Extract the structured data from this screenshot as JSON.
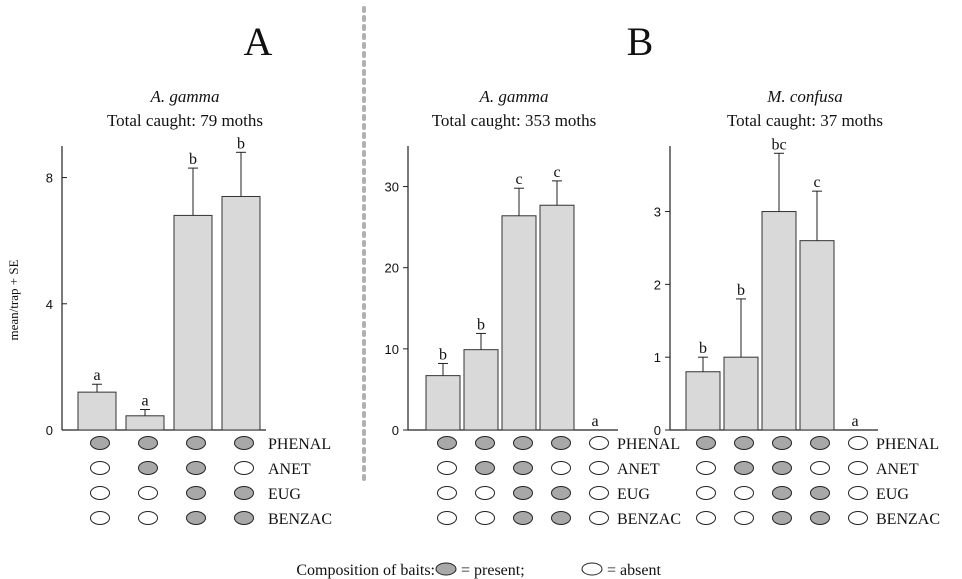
{
  "colors": {
    "bar_fill": "#d9d9d9",
    "bar_stroke": "#333333",
    "axis": "#222222",
    "divider": "#b0b0b0",
    "bait_present": "#a8a8a8",
    "bait_absent": "#ffffff"
  },
  "y_axis_label": "mean/trap + SE",
  "legend": {
    "prefix": "Composition of baits:",
    "present_text": "= present;",
    "absent_text": "= absent"
  },
  "chart_data": [
    {
      "type": "bar",
      "panel_letter": "A",
      "species": "A. gamma",
      "total": "Total caught: 79 moths",
      "ylim": [
        0,
        9
      ],
      "yticks": [
        0,
        4,
        8
      ],
      "categories": [
        "1",
        "2",
        "3",
        "4"
      ],
      "values": [
        1.2,
        0.45,
        6.8,
        7.4
      ],
      "errors": [
        0.25,
        0.2,
        1.5,
        1.4
      ],
      "letters": [
        "a",
        "a",
        "b",
        "b"
      ],
      "bait_rows": [
        "PHENAL",
        "ANET",
        "EUG",
        "BENZAC"
      ],
      "bait_matrix": [
        [
          true,
          false,
          false,
          false
        ],
        [
          true,
          true,
          false,
          false
        ],
        [
          true,
          true,
          true,
          true
        ],
        [
          true,
          false,
          true,
          true
        ]
      ]
    },
    {
      "type": "bar",
      "panel_letter": "B",
      "species": "A. gamma",
      "total": "Total caught: 353 moths",
      "ylim": [
        0,
        35
      ],
      "yticks": [
        0,
        10,
        20,
        30
      ],
      "categories": [
        "1",
        "2",
        "3",
        "4",
        "5"
      ],
      "values": [
        6.7,
        9.9,
        26.4,
        27.7,
        0
      ],
      "errors": [
        1.5,
        2.0,
        3.4,
        3.0,
        0
      ],
      "letters": [
        "b",
        "b",
        "c",
        "c",
        "a"
      ],
      "bait_rows": [
        "PHENAL",
        "ANET",
        "EUG",
        "BENZAC"
      ],
      "bait_matrix": [
        [
          true,
          false,
          false,
          false
        ],
        [
          true,
          true,
          false,
          false
        ],
        [
          true,
          true,
          true,
          true
        ],
        [
          true,
          false,
          true,
          true
        ],
        [
          false,
          false,
          false,
          false
        ]
      ]
    },
    {
      "type": "bar",
      "species": "M. confusa",
      "total": "Total caught: 37 moths",
      "ylim": [
        0,
        3.9
      ],
      "yticks": [
        0,
        1,
        2,
        3
      ],
      "categories": [
        "1",
        "2",
        "3",
        "4",
        "5"
      ],
      "values": [
        0.8,
        1.0,
        3.0,
        2.6,
        0
      ],
      "errors": [
        0.2,
        0.8,
        0.8,
        0.68,
        0
      ],
      "letters": [
        "b",
        "b",
        "bc",
        "c",
        "a"
      ],
      "bait_rows": [
        "PHENAL",
        "ANET",
        "EUG",
        "BENZAC"
      ],
      "bait_matrix": [
        [
          true,
          false,
          false,
          false
        ],
        [
          true,
          true,
          false,
          false
        ],
        [
          true,
          true,
          true,
          true
        ],
        [
          true,
          false,
          true,
          true
        ],
        [
          false,
          false,
          false,
          false
        ]
      ]
    }
  ]
}
